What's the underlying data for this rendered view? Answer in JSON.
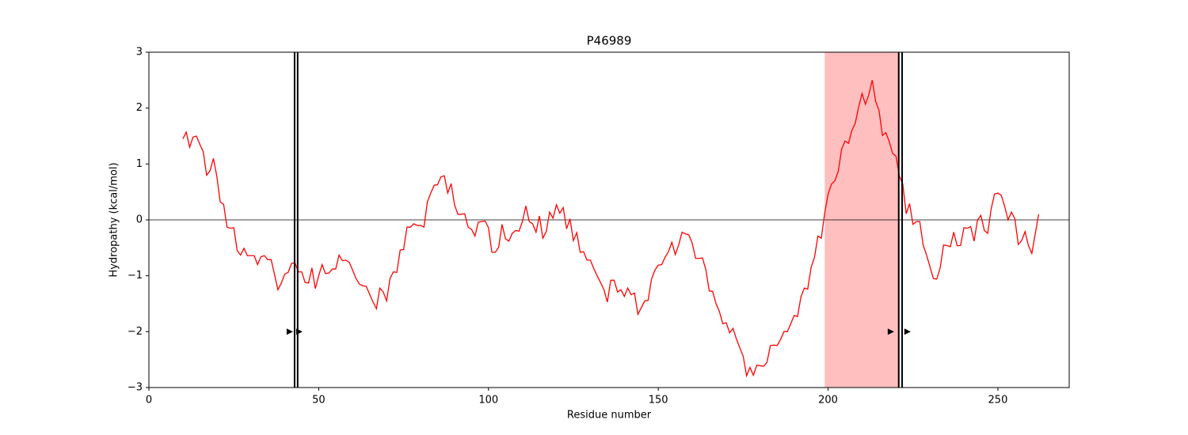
{
  "chart_data": {
    "type": "line",
    "title": "P46989",
    "xlabel": "Residue number",
    "ylabel": "Hydropathy (kcal/mol)",
    "xlim": [
      0,
      271
    ],
    "ylim": [
      -3,
      3
    ],
    "xticks": [
      0,
      50,
      100,
      150,
      200,
      250
    ],
    "yticks": [
      {
        "value": -3,
        "label": "−3"
      },
      {
        "value": -2,
        "label": "−2"
      },
      {
        "value": -1,
        "label": "−1"
      },
      0,
      1,
      2,
      3
    ],
    "hline": 0,
    "spans": [
      {
        "xmin": 199,
        "xmax": 221,
        "color": "#ffbfbf"
      }
    ],
    "vlines": [
      42.9,
      43.8,
      220.8,
      221.8
    ],
    "markers": {
      "x": [
        41.5,
        44.3,
        218.5,
        223.4
      ],
      "y": [
        -2,
        -2,
        -2,
        -2
      ],
      "color": "#000000"
    },
    "series": [
      {
        "color": "#ff0000",
        "x": [
          10,
          11,
          12,
          13,
          14,
          15,
          16,
          17,
          18,
          19,
          20,
          21,
          22,
          23,
          24,
          25,
          26,
          27,
          28,
          29,
          30,
          31,
          32,
          33,
          34,
          35,
          36,
          37,
          38,
          39,
          40,
          41,
          42,
          43,
          44,
          45,
          46,
          47,
          48,
          49,
          50,
          51,
          52,
          53,
          54,
          55,
          56,
          57,
          58,
          59,
          60,
          61,
          62,
          63,
          64,
          65,
          66,
          67,
          68,
          69,
          70,
          71,
          72,
          73,
          74,
          75,
          76,
          77,
          78,
          79,
          80,
          81,
          82,
          83,
          84,
          85,
          86,
          87,
          88,
          89,
          90,
          91,
          92,
          93,
          94,
          95,
          96,
          97,
          98,
          99,
          100,
          101,
          102,
          103,
          104,
          105,
          106,
          107,
          108,
          109,
          110,
          111,
          112,
          113,
          114,
          115,
          116,
          117,
          118,
          119,
          120,
          121,
          122,
          123,
          124,
          125,
          126,
          127,
          128,
          129,
          130,
          131,
          132,
          133,
          134,
          135,
          136,
          137,
          138,
          139,
          140,
          141,
          142,
          143,
          144,
          145,
          146,
          147,
          148,
          149,
          150,
          151,
          152,
          153,
          154,
          155,
          156,
          157,
          158,
          159,
          160,
          161,
          162,
          163,
          164,
          165,
          166,
          167,
          168,
          169,
          170,
          171,
          172,
          173,
          174,
          175,
          176,
          177,
          178,
          179,
          180,
          181,
          182,
          183,
          184,
          185,
          186,
          187,
          188,
          189,
          190,
          191,
          192,
          193,
          194,
          195,
          196,
          197,
          198,
          199,
          200,
          201,
          202,
          203,
          204,
          205,
          206,
          207,
          208,
          209,
          210,
          211,
          212,
          213,
          214,
          215,
          216,
          217,
          218,
          219,
          220,
          221,
          222,
          223,
          224,
          225,
          226,
          227,
          228,
          229,
          230,
          231,
          232,
          233,
          234,
          235,
          236,
          237,
          238,
          239,
          240,
          241,
          242,
          243,
          244,
          245,
          246,
          247,
          248,
          249,
          250,
          251,
          252,
          253,
          254,
          255,
          256,
          257,
          258,
          259,
          260,
          261,
          262
        ],
        "values": [
          1.45,
          1.57,
          1.3,
          1.48,
          1.5,
          1.35,
          1.22,
          0.8,
          0.88,
          1.1,
          0.78,
          0.32,
          0.28,
          -0.13,
          -0.15,
          -0.14,
          -0.55,
          -0.63,
          -0.51,
          -0.64,
          -0.64,
          -0.64,
          -0.8,
          -0.66,
          -0.64,
          -0.71,
          -0.71,
          -0.98,
          -1.25,
          -1.13,
          -0.97,
          -0.94,
          -0.78,
          -0.77,
          -0.93,
          -0.93,
          -1.12,
          -1.13,
          -0.86,
          -1.23,
          -1.0,
          -0.8,
          -0.96,
          -0.95,
          -0.88,
          -0.88,
          -0.63,
          -0.73,
          -0.72,
          -0.76,
          -0.9,
          -1.05,
          -1.15,
          -1.18,
          -1.19,
          -1.33,
          -1.47,
          -1.59,
          -1.22,
          -1.29,
          -1.45,
          -1.05,
          -0.93,
          -0.94,
          -0.54,
          -0.53,
          -0.13,
          -0.13,
          -0.07,
          -0.1,
          -0.1,
          -0.13,
          0.32,
          0.48,
          0.62,
          0.63,
          0.77,
          0.79,
          0.48,
          0.65,
          0.27,
          0.1,
          0.1,
          0.11,
          -0.13,
          -0.17,
          -0.29,
          -0.04,
          -0.03,
          -0.02,
          -0.14,
          -0.58,
          -0.58,
          -0.49,
          -0.08,
          -0.34,
          -0.38,
          -0.24,
          -0.19,
          -0.2,
          -0.03,
          0.25,
          -0.03,
          -0.07,
          -0.22,
          0.07,
          -0.33,
          -0.21,
          0.14,
          0.03,
          0.27,
          0.12,
          0.22,
          -0.16,
          0.02,
          -0.37,
          -0.23,
          -0.58,
          -0.57,
          -0.72,
          -0.72,
          -0.87,
          -1.0,
          -1.12,
          -1.25,
          -1.47,
          -1.08,
          -1.08,
          -1.29,
          -1.25,
          -1.37,
          -1.22,
          -1.34,
          -1.31,
          -1.69,
          -1.57,
          -1.45,
          -1.44,
          -1.06,
          -0.9,
          -0.81,
          -0.8,
          -0.67,
          -0.57,
          -0.4,
          -0.62,
          -0.45,
          -0.22,
          -0.25,
          -0.27,
          -0.42,
          -0.69,
          -0.69,
          -0.68,
          -0.89,
          -1.27,
          -1.28,
          -1.5,
          -1.64,
          -1.86,
          -1.84,
          -2.02,
          -1.94,
          -2.13,
          -2.29,
          -2.44,
          -2.79,
          -2.64,
          -2.78,
          -2.6,
          -2.61,
          -2.62,
          -2.55,
          -2.25,
          -2.24,
          -2.25,
          -2.14,
          -2.0,
          -2.0,
          -1.86,
          -1.71,
          -1.73,
          -1.38,
          -1.22,
          -1.24,
          -0.85,
          -0.67,
          -0.29,
          -0.33,
          0.12,
          0.46,
          0.64,
          0.7,
          0.87,
          1.27,
          1.41,
          1.37,
          1.6,
          1.73,
          2.02,
          2.26,
          2.07,
          2.24,
          2.5,
          2.12,
          1.96,
          1.51,
          1.56,
          1.4,
          1.19,
          1.14,
          0.78,
          0.64,
          0.11,
          0.29,
          -0.08,
          -0.03,
          -0.03,
          -0.45,
          -0.63,
          -0.84,
          -1.05,
          -1.06,
          -0.86,
          -0.45,
          -0.46,
          -0.48,
          -0.22,
          -0.46,
          -0.46,
          -0.14,
          -0.15,
          -0.12,
          -0.38,
          0.0,
          0.08,
          -0.19,
          -0.24,
          0.19,
          0.46,
          0.48,
          0.44,
          0.24,
          0.0,
          0.14,
          0.02,
          -0.44,
          -0.37,
          -0.21,
          -0.46,
          -0.6,
          -0.25,
          0.1
        ]
      }
    ]
  }
}
